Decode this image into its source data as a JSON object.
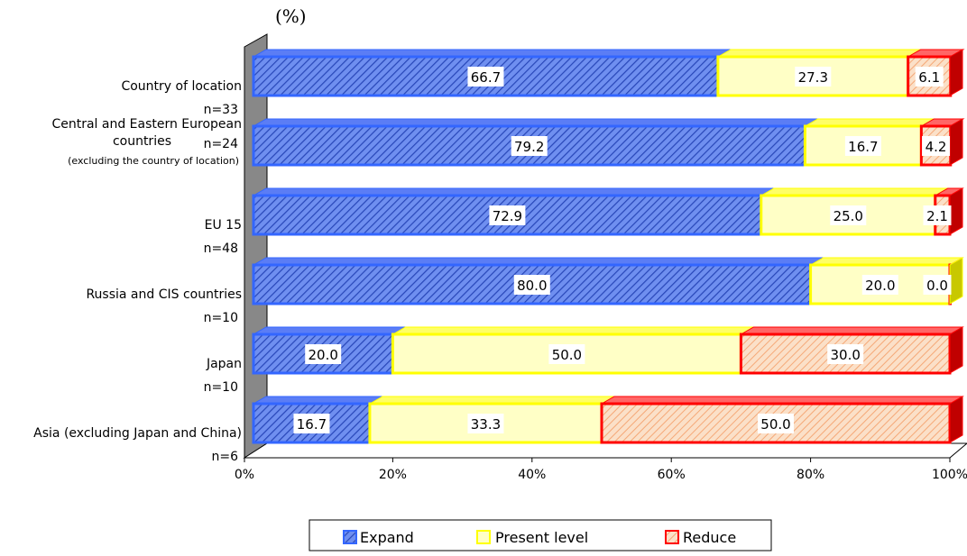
{
  "chart_data": {
    "type": "bar",
    "stacked": true,
    "orientation": "horizontal",
    "unit_label": "(%)",
    "categories": [
      {
        "name": "Country of location",
        "n": "n=33"
      },
      {
        "name": "Central and Eastern European countries",
        "sub": "(excluding the country of location)",
        "n": "n=24"
      },
      {
        "name": "EU 15",
        "n": "n=48"
      },
      {
        "name": "Russia and CIS countries",
        "n": "n=10"
      },
      {
        "name": "Japan",
        "n": "n=10"
      },
      {
        "name": "Asia (excluding Japan and China)",
        "n": "n=6"
      }
    ],
    "series": [
      {
        "name": "Expand",
        "values": [
          66.7,
          79.2,
          72.9,
          80.0,
          20.0,
          16.7
        ],
        "color": "#3366ff",
        "pattern": "hatch"
      },
      {
        "name": "Present level",
        "values": [
          27.3,
          16.7,
          25.0,
          20.0,
          50.0,
          33.3
        ],
        "color": "#ffff00",
        "pattern": "solid-light"
      },
      {
        "name": "Reduce",
        "values": [
          6.1,
          4.2,
          2.1,
          0.0,
          30.0,
          50.0
        ],
        "color": "#ff0000",
        "pattern": "hatch-light"
      }
    ],
    "xlim": [
      0,
      100
    ],
    "xticks": [
      "0%",
      "20%",
      "40%",
      "60%",
      "80%",
      "100%"
    ],
    "legend_position": "bottom"
  }
}
